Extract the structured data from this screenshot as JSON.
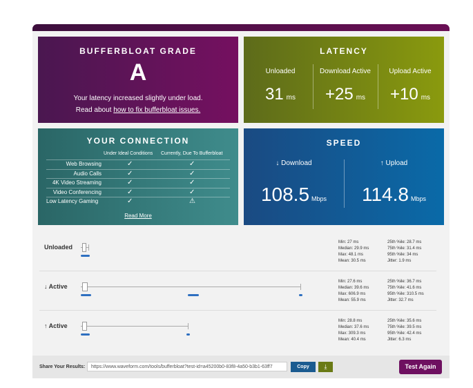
{
  "grade": {
    "title": "BUFFERBLOAT GRADE",
    "value": "A",
    "text": "Your latency increased slightly under load.",
    "link_prefix": "Read about",
    "link": "how to fix bufferbloat issues."
  },
  "latency": {
    "title": "LATENCY",
    "columns": [
      {
        "label": "Unloaded",
        "value": "31",
        "unit": "ms"
      },
      {
        "label": "Download Active",
        "value": "+25",
        "unit": "ms"
      },
      {
        "label": "Upload Active",
        "value": "+10",
        "unit": "ms"
      }
    ]
  },
  "connection": {
    "title": "YOUR CONNECTION",
    "headers": [
      "Under Ideal Conditions",
      "Currently, Due To Bufferbloat"
    ],
    "rows": [
      "Web Browsing",
      "Audio Calls",
      "4K Video Streaming",
      "Video Conferencing",
      "Low Latency Gaming"
    ],
    "read_more": "Read More"
  },
  "speed": {
    "title": "SPEED",
    "columns": [
      {
        "label": "↓ Download",
        "value": "108.5",
        "unit": "Mbps"
      },
      {
        "label": "↑ Upload",
        "value": "114.8",
        "unit": "Mbps"
      }
    ]
  },
  "results": [
    {
      "label": "Unloaded",
      "stats": [
        "Min: 27 ms",
        "Median: 29.9 ms",
        "Max: 48.1 ms",
        "Mean: 30.5 ms"
      ],
      "stats2": [
        "25th %ile: 28.7 ms",
        "75th %ile: 31.4 ms",
        "95th %ile: 34 ms",
        "Jitter: 1.9 ms"
      ]
    },
    {
      "label": "↓ Active",
      "stats": [
        "Min: 27.6 ms",
        "Median: 39.6 ms",
        "Max: 606.9 ms",
        "Mean: 55.9 ms"
      ],
      "stats2": [
        "25th %ile: 36.7 ms",
        "75th %ile: 41.6 ms",
        "95th %ile: 310.5 ms",
        "Jitter: 32.7 ms"
      ]
    },
    {
      "label": "↑ Active",
      "stats": [
        "Min: 28.8 ms",
        "Median: 37.6 ms",
        "Max: 309.3 ms",
        "Mean: 40.4 ms"
      ],
      "stats2": [
        "25th %ile: 35.6 ms",
        "75th %ile: 39.5 ms",
        "95th %ile: 42.4 ms",
        "Jitter: 6.3 ms"
      ]
    }
  ],
  "share": {
    "label": "Share Your Results:",
    "url": "https://www.waveform.com/tools/bufferbloat?test-id=a45200b0-83f8-4a50-b3b1-63ff7",
    "copy": "Copy",
    "test_again": "Test Again"
  }
}
